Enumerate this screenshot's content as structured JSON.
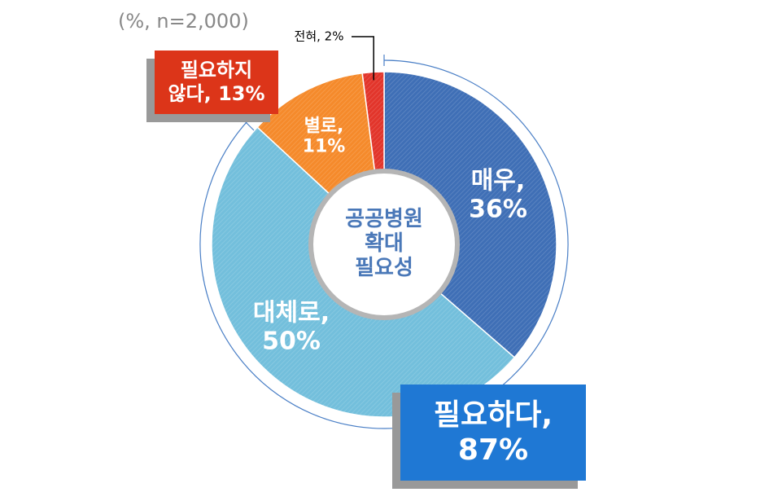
{
  "chart_data": {
    "type": "donut",
    "title": "공공병원 확대 필요성",
    "subtitle": "(%, n=2,000)",
    "categories": [
      "매우,",
      "대체로,",
      "별로,",
      "전혀,"
    ],
    "values": [
      36,
      50,
      11,
      2
    ],
    "value_labels": [
      "36%",
      "50%",
      "11%",
      "2%"
    ],
    "colors": [
      "#3f6fb6",
      "#73bfdc",
      "#f58a2b",
      "#e2352b"
    ],
    "groups": [
      {
        "label": "필요하다,",
        "value": 87,
        "value_label": "87%",
        "color": "#1f78d4"
      },
      {
        "label": "필요하지 않다,",
        "value": 13,
        "value_label": "13%",
        "color": "#dc3519"
      }
    ]
  }
}
